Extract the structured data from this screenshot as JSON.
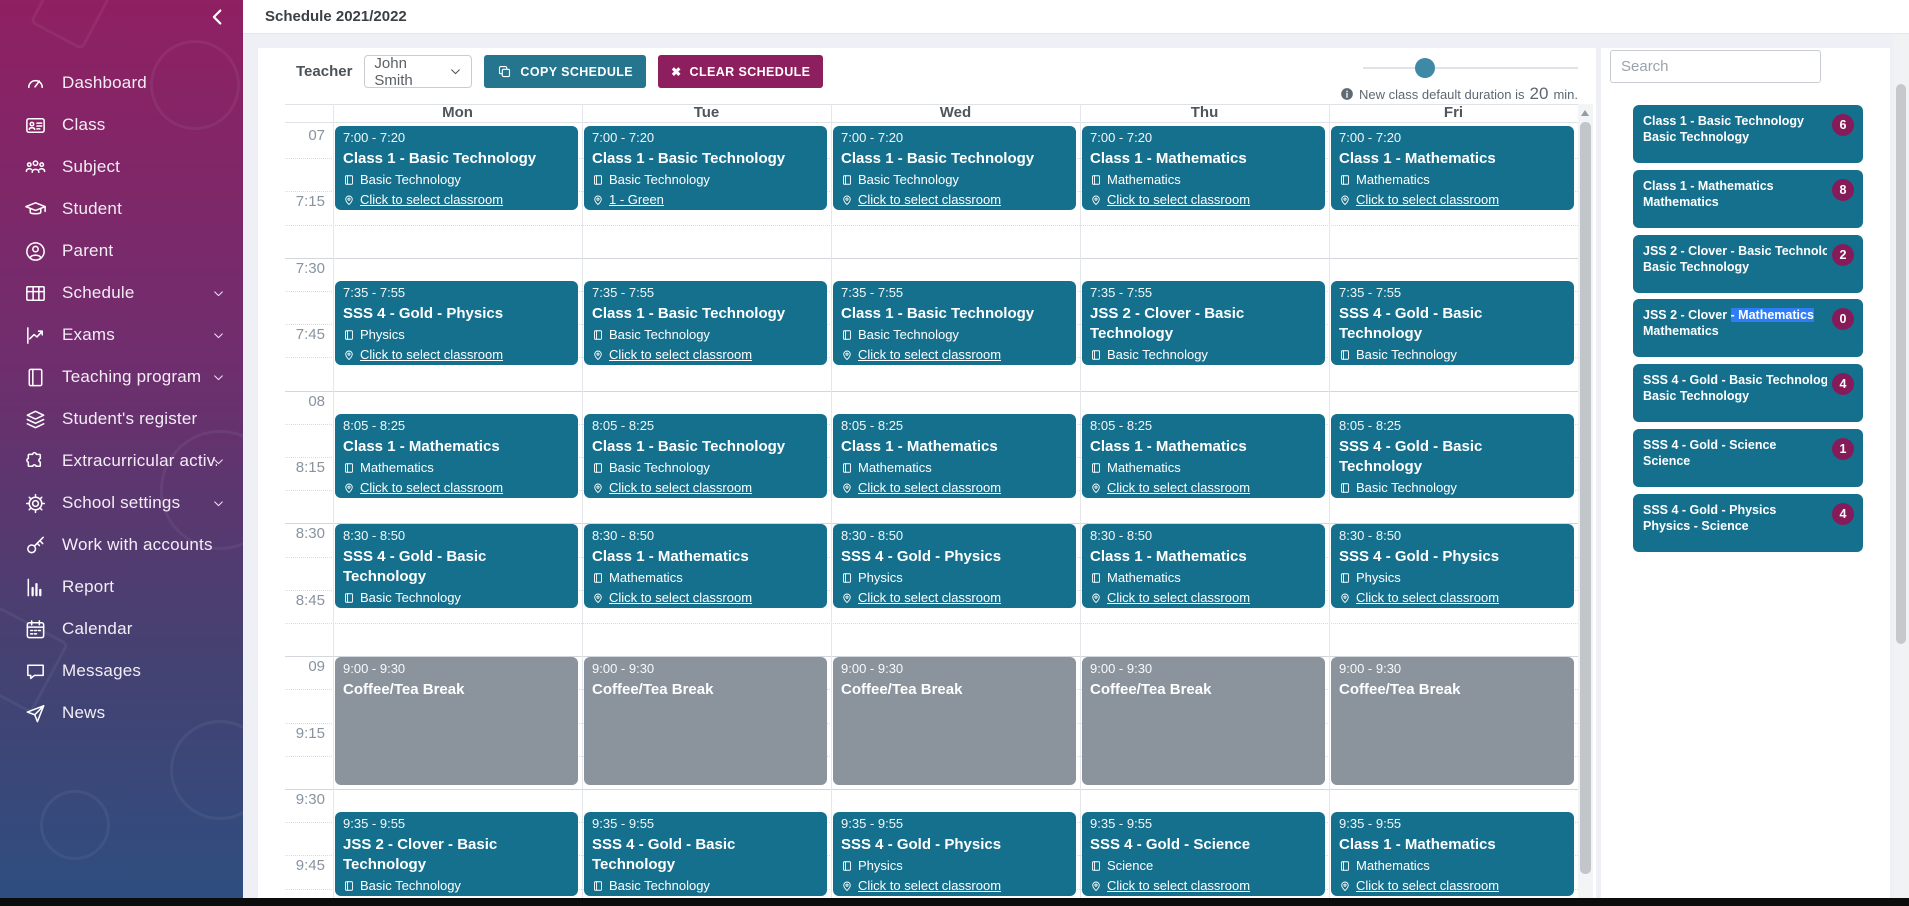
{
  "app": {
    "title": "Schedule 2021/2022"
  },
  "sidebar": {
    "items": [
      {
        "label": "Dashboard",
        "icon": "dashboard",
        "expandable": false
      },
      {
        "label": "Class",
        "icon": "idcard",
        "expandable": false
      },
      {
        "label": "Subject",
        "icon": "group",
        "expandable": false
      },
      {
        "label": "Student",
        "icon": "gradcap",
        "expandable": false
      },
      {
        "label": "Parent",
        "icon": "usercircle",
        "expandable": false
      },
      {
        "label": "Schedule",
        "icon": "table",
        "expandable": true
      },
      {
        "label": "Exams",
        "icon": "chartline",
        "expandable": true
      },
      {
        "label": "Teaching program",
        "icon": "book",
        "expandable": true
      },
      {
        "label": "Student's register",
        "icon": "layers",
        "expandable": false
      },
      {
        "label": "Extracurricular activ...",
        "icon": "puzzle",
        "expandable": true
      },
      {
        "label": "School settings",
        "icon": "gear",
        "expandable": true
      },
      {
        "label": "Work with accounts",
        "icon": "key",
        "expandable": false
      },
      {
        "label": "Report",
        "icon": "barchart",
        "expandable": false
      },
      {
        "label": "Calendar",
        "icon": "calendar",
        "expandable": false
      },
      {
        "label": "Messages",
        "icon": "chat",
        "expandable": false
      },
      {
        "label": "News",
        "icon": "send",
        "expandable": false
      }
    ]
  },
  "toolbar": {
    "teacher_label": "Teacher",
    "teacher_selected": "John Smith",
    "copy_button": "COPY SCHEDULE",
    "clear_button": "CLEAR SCHEDULE",
    "clear_icon_glyph": "✖",
    "duration_note_prefix": "New class default duration is",
    "duration_value": "20",
    "duration_suffix": "min.",
    "slider_position_percent": 29
  },
  "calendar": {
    "days": [
      "Mon",
      "Tue",
      "Wed",
      "Thu",
      "Fri"
    ],
    "time_labels": [
      "07",
      "7:15",
      "7:30",
      "7:45",
      "08",
      "8:15",
      "8:30",
      "8:45",
      "09",
      "9:15",
      "9:30",
      "9:45"
    ],
    "classroom_placeholder": "Click to select classroom",
    "events": [
      {
        "day": "Mon",
        "start": "7:00",
        "end": "7:20",
        "title": "Class 1 - Basic Technology",
        "subject": "Basic Technology",
        "classroom": null,
        "type": "class"
      },
      {
        "day": "Tue",
        "start": "7:00",
        "end": "7:20",
        "title": "Class 1 - Basic Technology",
        "subject": "Basic Technology",
        "classroom": "1 - Green",
        "type": "class"
      },
      {
        "day": "Wed",
        "start": "7:00",
        "end": "7:20",
        "title": "Class 1 - Basic Technology",
        "subject": "Basic Technology",
        "classroom": null,
        "type": "class"
      },
      {
        "day": "Thu",
        "start": "7:00",
        "end": "7:20",
        "title": "Class 1 - Mathematics",
        "subject": "Mathematics",
        "classroom": null,
        "type": "class"
      },
      {
        "day": "Fri",
        "start": "7:00",
        "end": "7:20",
        "title": "Class 1 - Mathematics",
        "subject": "Mathematics",
        "classroom": null,
        "type": "class"
      },
      {
        "day": "Mon",
        "start": "7:35",
        "end": "7:55",
        "title": "SSS 4 - Gold - Physics",
        "subject": "Physics",
        "classroom": null,
        "type": "class"
      },
      {
        "day": "Tue",
        "start": "7:35",
        "end": "7:55",
        "title": "Class 1 - Basic Technology",
        "subject": "Basic Technology",
        "classroom": null,
        "type": "class"
      },
      {
        "day": "Wed",
        "start": "7:35",
        "end": "7:55",
        "title": "Class 1 - Basic Technology",
        "subject": "Basic Technology",
        "classroom": null,
        "type": "class"
      },
      {
        "day": "Thu",
        "start": "7:35",
        "end": "7:55",
        "title": "JSS 2 - Clover - Basic Technology",
        "subject": "Basic Technology",
        "classroom": null,
        "type": "class"
      },
      {
        "day": "Fri",
        "start": "7:35",
        "end": "7:55",
        "title": "SSS 4 - Gold - Basic Technology",
        "subject": "Basic Technology",
        "classroom": null,
        "type": "class"
      },
      {
        "day": "Mon",
        "start": "8:05",
        "end": "8:25",
        "title": "Class 1 - Mathematics",
        "subject": "Mathematics",
        "classroom": null,
        "type": "class"
      },
      {
        "day": "Tue",
        "start": "8:05",
        "end": "8:25",
        "title": "Class 1 - Basic Technology",
        "subject": "Basic Technology",
        "classroom": null,
        "type": "class"
      },
      {
        "day": "Wed",
        "start": "8:05",
        "end": "8:25",
        "title": "Class 1 - Mathematics",
        "subject": "Mathematics",
        "classroom": null,
        "type": "class"
      },
      {
        "day": "Thu",
        "start": "8:05",
        "end": "8:25",
        "title": "Class 1 - Mathematics",
        "subject": "Mathematics",
        "classroom": null,
        "type": "class"
      },
      {
        "day": "Fri",
        "start": "8:05",
        "end": "8:25",
        "title": "SSS 4 - Gold - Basic Technology",
        "subject": "Basic Technology",
        "classroom": null,
        "type": "class"
      },
      {
        "day": "Mon",
        "start": "8:30",
        "end": "8:50",
        "title": "SSS 4 - Gold - Basic Technology",
        "subject": "Basic Technology",
        "classroom": null,
        "type": "class"
      },
      {
        "day": "Tue",
        "start": "8:30",
        "end": "8:50",
        "title": "Class 1 - Mathematics",
        "subject": "Mathematics",
        "classroom": null,
        "type": "class"
      },
      {
        "day": "Wed",
        "start": "8:30",
        "end": "8:50",
        "title": "SSS 4 - Gold - Physics",
        "subject": "Physics",
        "classroom": null,
        "type": "class"
      },
      {
        "day": "Thu",
        "start": "8:30",
        "end": "8:50",
        "title": "Class 1 - Mathematics",
        "subject": "Mathematics",
        "classroom": null,
        "type": "class"
      },
      {
        "day": "Fri",
        "start": "8:30",
        "end": "8:50",
        "title": "SSS 4 - Gold - Physics",
        "subject": "Physics",
        "classroom": null,
        "type": "class"
      },
      {
        "day": "Mon",
        "start": "9:00",
        "end": "9:30",
        "title": "Coffee/Tea Break",
        "subject": null,
        "classroom": null,
        "type": "break"
      },
      {
        "day": "Tue",
        "start": "9:00",
        "end": "9:30",
        "title": "Coffee/Tea Break",
        "subject": null,
        "classroom": null,
        "type": "break"
      },
      {
        "day": "Wed",
        "start": "9:00",
        "end": "9:30",
        "title": "Coffee/Tea Break",
        "subject": null,
        "classroom": null,
        "type": "break"
      },
      {
        "day": "Thu",
        "start": "9:00",
        "end": "9:30",
        "title": "Coffee/Tea Break",
        "subject": null,
        "classroom": null,
        "type": "break"
      },
      {
        "day": "Fri",
        "start": "9:00",
        "end": "9:30",
        "title": "Coffee/Tea Break",
        "subject": null,
        "classroom": null,
        "type": "break"
      },
      {
        "day": "Mon",
        "start": "9:35",
        "end": "9:55",
        "title": "JSS 2 - Clover - Basic Technology",
        "subject": "Basic Technology",
        "classroom": null,
        "type": "class"
      },
      {
        "day": "Tue",
        "start": "9:35",
        "end": "9:55",
        "title": "SSS 4 - Gold - Basic Technology",
        "subject": "Basic Technology",
        "classroom": null,
        "type": "class"
      },
      {
        "day": "Wed",
        "start": "9:35",
        "end": "9:55",
        "title": "SSS 4 - Gold - Physics",
        "subject": "Physics",
        "classroom": null,
        "type": "class"
      },
      {
        "day": "Thu",
        "start": "9:35",
        "end": "9:55",
        "title": "SSS 4 - Gold - Science",
        "subject": "Science",
        "classroom": null,
        "type": "class"
      },
      {
        "day": "Fri",
        "start": "9:35",
        "end": "9:55",
        "title": "Class 1 - Mathematics",
        "subject": "Mathematics",
        "classroom": null,
        "type": "class"
      }
    ]
  },
  "right_panel": {
    "search_placeholder": "Search",
    "classes": [
      {
        "title": "Class 1 - Basic Technology",
        "subject": "Basic Technology",
        "count": "6"
      },
      {
        "title": "Class 1 - Mathematics",
        "subject": "Mathematics",
        "count": "8"
      },
      {
        "title": "JSS 2 - Clover - Basic Technology",
        "subject": "Basic Technology",
        "count": "2"
      },
      {
        "title": "JSS 2 - Clover - Mathematics",
        "subject": "Mathematics",
        "count": "0",
        "selected_text": "- Mathematics"
      },
      {
        "title": "SSS 4 - Gold - Basic Technology",
        "subject": "Basic Technology",
        "count": "4"
      },
      {
        "title": "SSS 4 - Gold - Science",
        "subject": "Science",
        "count": "1"
      },
      {
        "title": "SSS 4 - Gold - Physics",
        "subject": "Physics - Science",
        "count": "4"
      }
    ]
  },
  "colors": {
    "event_teal": "#15708e",
    "break_gray": "#8b939d",
    "accent_magenta": "#8e1f5e",
    "badge_magenta": "#851b58",
    "sidebar_gradient_top": "#8f2062",
    "sidebar_gradient_bottom": "#2e4e80",
    "selection_blue": "#2f7df6"
  }
}
